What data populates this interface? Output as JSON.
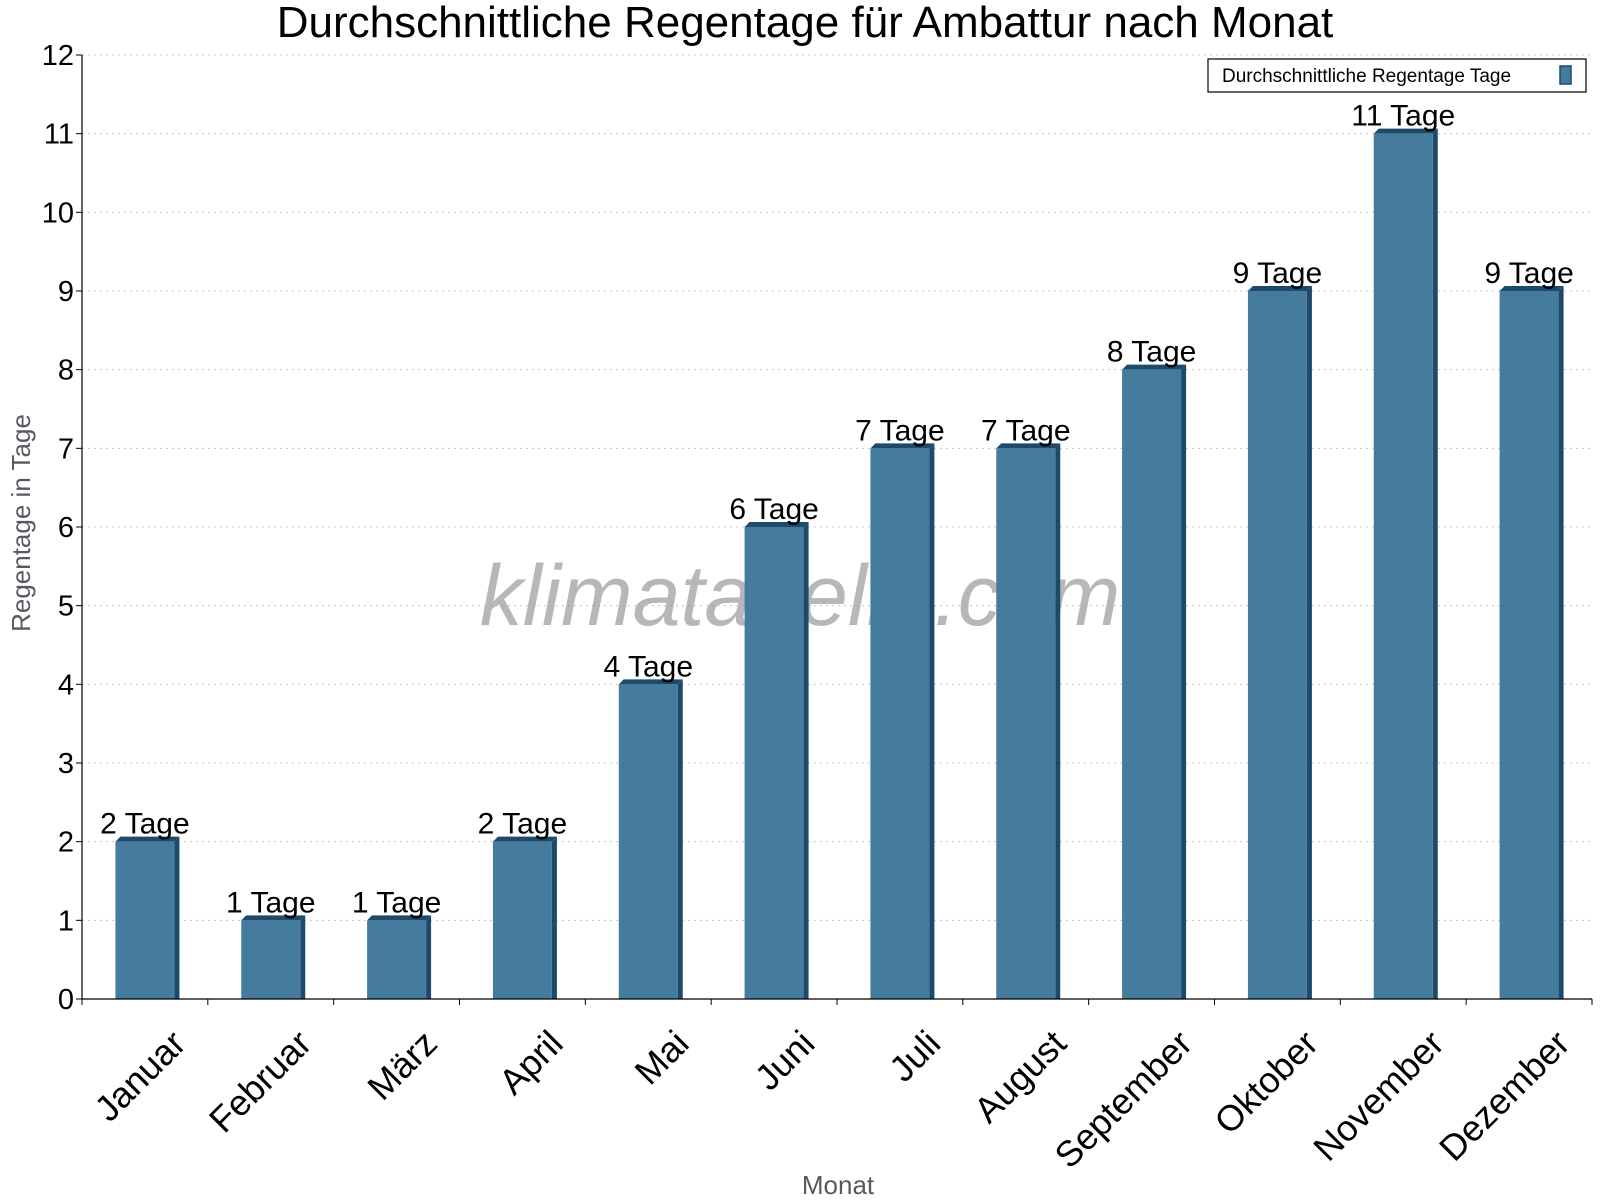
{
  "chart_data": {
    "type": "bar",
    "title": "Durchschnittliche Regentage für Ambattur nach Monat",
    "xlabel": "Monat",
    "ylabel": "Regentage in Tage",
    "ylim": [
      0,
      12
    ],
    "yticks": [
      0,
      1,
      2,
      3,
      4,
      5,
      6,
      7,
      8,
      9,
      10,
      11,
      12
    ],
    "grid": true,
    "legend_position": "top-right",
    "categories": [
      "Januar",
      "Februar",
      "März",
      "April",
      "Mai",
      "Juni",
      "Juli",
      "August",
      "September",
      "Oktober",
      "November",
      "Dezember"
    ],
    "series": [
      {
        "name": "Durchschnittliche Regentage Tage",
        "values": [
          2,
          1,
          1,
          2,
          4,
          6,
          7,
          7,
          8,
          9,
          11,
          9
        ],
        "labels": [
          "2 Tage",
          "1 Tage",
          "1 Tage",
          "2 Tage",
          "4 Tage",
          "6 Tage",
          "7 Tage",
          "7 Tage",
          "8 Tage",
          "9 Tage",
          "11 Tage",
          "9 Tage"
        ],
        "color": "#457b9d",
        "edge_color": "#1d4a6b"
      }
    ],
    "watermark": "klimatabelle.com"
  }
}
